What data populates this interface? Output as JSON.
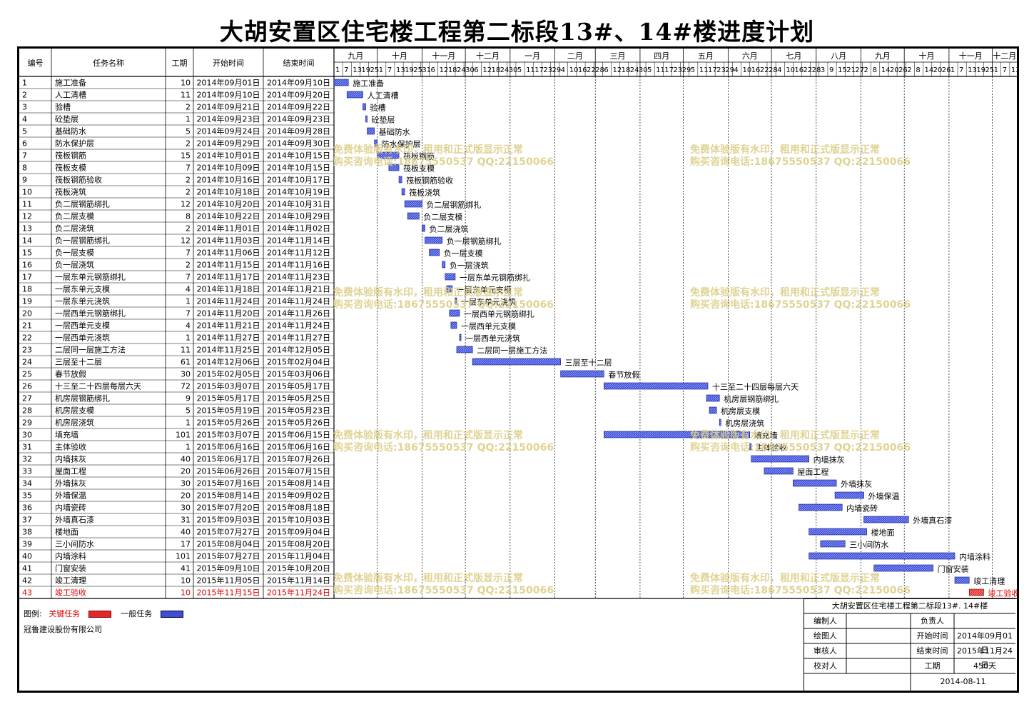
{
  "title": "大胡安置区住宅楼工程第二标段13#、14#楼进度计划",
  "columns": {
    "id": "编号",
    "name": "任务名称",
    "dur": "工期",
    "start": "开始时间",
    "end": "结束时间"
  },
  "months": [
    "九月",
    "十月",
    "十一月",
    "十二月",
    "一月",
    "二月",
    "三月",
    "四月",
    "五月",
    "六月",
    "七月",
    "八月",
    "九月",
    "十月",
    "十一月",
    "十二月"
  ],
  "day_ticks": [
    "1",
    "7",
    "13",
    "19",
    "25",
    "1",
    "7",
    "13",
    "19",
    "25",
    "31",
    "6",
    "12",
    "18",
    "24",
    "30",
    "6",
    "12",
    "18",
    "24",
    "30",
    "5",
    "11",
    "17",
    "23",
    "29",
    "4",
    "10",
    "16",
    "22",
    "28",
    "6",
    "12",
    "18",
    "24",
    "30",
    "5",
    "11",
    "17",
    "23",
    "29",
    "5",
    "11",
    "17",
    "23",
    "29",
    "4",
    "10",
    "16",
    "22",
    "28",
    "4",
    "10",
    "16",
    "22",
    "28",
    "3",
    "9",
    "15",
    "21",
    "27",
    "2",
    "8",
    "14",
    "20",
    "26",
    "2",
    "8",
    "14",
    "20",
    "26",
    "1",
    "7",
    "13",
    "19",
    "25",
    "1",
    "7",
    "13"
  ],
  "tasks": [
    {
      "id": "1",
      "name": "施工准备",
      "dur": "10",
      "start": "2014年09月01日",
      "end": "2014年09月10日",
      "critical": false
    },
    {
      "id": "2",
      "name": "人工清槽",
      "dur": "11",
      "start": "2014年09月10日",
      "end": "2014年09月20日",
      "critical": false
    },
    {
      "id": "3",
      "name": "验槽",
      "dur": "2",
      "start": "2014年09月21日",
      "end": "2014年09月22日",
      "critical": false
    },
    {
      "id": "4",
      "name": "砼垫层",
      "dur": "1",
      "start": "2014年09月23日",
      "end": "2014年09月23日",
      "critical": false
    },
    {
      "id": "5",
      "name": "基础防水",
      "dur": "5",
      "start": "2014年09月24日",
      "end": "2014年09月28日",
      "critical": false
    },
    {
      "id": "6",
      "name": "防水保护层",
      "dur": "2",
      "start": "2014年09月29日",
      "end": "2014年09月30日",
      "critical": false
    },
    {
      "id": "7",
      "name": "筏板钢筋",
      "dur": "15",
      "start": "2014年10月01日",
      "end": "2014年10月15日",
      "critical": false
    },
    {
      "id": "8",
      "name": "筏板支模",
      "dur": "7",
      "start": "2014年10月09日",
      "end": "2014年10月15日",
      "critical": false
    },
    {
      "id": "9",
      "name": "筏板钢筋验收",
      "dur": "2",
      "start": "2014年10月16日",
      "end": "2014年10月17日",
      "critical": false
    },
    {
      "id": "10",
      "name": "筏板浇筑",
      "dur": "2",
      "start": "2014年10月18日",
      "end": "2014年10月19日",
      "critical": false
    },
    {
      "id": "11",
      "name": "负二层钢筋绑扎",
      "dur": "12",
      "start": "2014年10月20日",
      "end": "2014年10月31日",
      "critical": false
    },
    {
      "id": "12",
      "name": "负二层支模",
      "dur": "8",
      "start": "2014年10月22日",
      "end": "2014年10月29日",
      "critical": false
    },
    {
      "id": "13",
      "name": "负二层浇筑",
      "dur": "2",
      "start": "2014年11月01日",
      "end": "2014年11月02日",
      "critical": false
    },
    {
      "id": "14",
      "name": "负一层钢筋绑扎",
      "dur": "12",
      "start": "2014年11月03日",
      "end": "2014年11月14日",
      "critical": false
    },
    {
      "id": "15",
      "name": "负一层支模",
      "dur": "7",
      "start": "2014年11月06日",
      "end": "2014年11月12日",
      "critical": false
    },
    {
      "id": "16",
      "name": "负一层浇筑",
      "dur": "2",
      "start": "2014年11月15日",
      "end": "2014年11月16日",
      "critical": false
    },
    {
      "id": "17",
      "name": "一层东单元钢筋绑扎",
      "dur": "7",
      "start": "2014年11月17日",
      "end": "2014年11月23日",
      "critical": false
    },
    {
      "id": "18",
      "name": "一层东单元支模",
      "dur": "4",
      "start": "2014年11月18日",
      "end": "2014年11月21日",
      "critical": false
    },
    {
      "id": "19",
      "name": "一层东单元浇筑",
      "dur": "1",
      "start": "2014年11月24日",
      "end": "2014年11月24日",
      "critical": false
    },
    {
      "id": "20",
      "name": "一层西单元钢筋绑扎",
      "dur": "7",
      "start": "2014年11月20日",
      "end": "2014年11月26日",
      "critical": false
    },
    {
      "id": "21",
      "name": "一层西单元支模",
      "dur": "4",
      "start": "2014年11月21日",
      "end": "2014年11月24日",
      "critical": false
    },
    {
      "id": "22",
      "name": "一层西单元浇筑",
      "dur": "1",
      "start": "2014年11月27日",
      "end": "2014年11月27日",
      "critical": false
    },
    {
      "id": "23",
      "name": "二层同一层施工方法",
      "dur": "11",
      "start": "2014年11月25日",
      "end": "2014年12月05日",
      "critical": false
    },
    {
      "id": "24",
      "name": "三层至十二层",
      "dur": "61",
      "start": "2014年12月06日",
      "end": "2015年02月04日",
      "critical": false
    },
    {
      "id": "25",
      "name": "春节放假",
      "dur": "30",
      "start": "2015年02月05日",
      "end": "2015年03月06日",
      "critical": false
    },
    {
      "id": "26",
      "name": "十三至二十四层每层六天",
      "dur": "72",
      "start": "2015年03月07日",
      "end": "2015年05月17日",
      "critical": false
    },
    {
      "id": "27",
      "name": "机房层钢筋绑扎",
      "dur": "9",
      "start": "2015年05月17日",
      "end": "2015年05月25日",
      "critical": false
    },
    {
      "id": "28",
      "name": "机房层支模",
      "dur": "5",
      "start": "2015年05月19日",
      "end": "2015年05月23日",
      "critical": false
    },
    {
      "id": "29",
      "name": "机房层浇筑",
      "dur": "1",
      "start": "2015年05月26日",
      "end": "2015年05月26日",
      "critical": false
    },
    {
      "id": "30",
      "name": "填充墙",
      "dur": "101",
      "start": "2015年03月07日",
      "end": "2015年06月15日",
      "critical": false
    },
    {
      "id": "31",
      "name": "主体验收",
      "dur": "1",
      "start": "2015年06月16日",
      "end": "2015年06月16日",
      "critical": false
    },
    {
      "id": "32",
      "name": "内墙抹灰",
      "dur": "40",
      "start": "2015年06月17日",
      "end": "2015年07月26日",
      "critical": false
    },
    {
      "id": "33",
      "name": "屋面工程",
      "dur": "20",
      "start": "2015年06月26日",
      "end": "2015年07月15日",
      "critical": false
    },
    {
      "id": "34",
      "name": "外墙抹灰",
      "dur": "30",
      "start": "2015年07月16日",
      "end": "2015年08月14日",
      "critical": false
    },
    {
      "id": "35",
      "name": "外墙保温",
      "dur": "20",
      "start": "2015年08月14日",
      "end": "2015年09月02日",
      "critical": false
    },
    {
      "id": "36",
      "name": "内墙瓷砖",
      "dur": "30",
      "start": "2015年07月20日",
      "end": "2015年08月18日",
      "critical": false
    },
    {
      "id": "37",
      "name": "外墙真石漆",
      "dur": "31",
      "start": "2015年09月03日",
      "end": "2015年10月03日",
      "critical": false
    },
    {
      "id": "38",
      "name": "楼地面",
      "dur": "40",
      "start": "2015年07月27日",
      "end": "2015年09月04日",
      "critical": false
    },
    {
      "id": "39",
      "name": "三小间防水",
      "dur": "17",
      "start": "2015年08月04日",
      "end": "2015年08月20日",
      "critical": false
    },
    {
      "id": "40",
      "name": "内墙涂料",
      "dur": "101",
      "start": "2015年07月27日",
      "end": "2015年11月04日",
      "critical": false
    },
    {
      "id": "41",
      "name": "门窗安装",
      "dur": "41",
      "start": "2015年09月10日",
      "end": "2015年10月20日",
      "critical": false
    },
    {
      "id": "42",
      "name": "竣工清理",
      "dur": "10",
      "start": "2015年11月05日",
      "end": "2015年11月14日",
      "critical": false
    },
    {
      "id": "43",
      "name": "竣工验收",
      "dur": "10",
      "start": "2015年11月15日",
      "end": "2015年11月24日",
      "critical": true
    }
  ],
  "watermark": {
    "line1": "免费体验版有水印，租用和正式版显示正常",
    "line2": "购买咨询电话:18675550537 QQ:22150066"
  },
  "legend": {
    "label": "图例:",
    "critical": "关键任务",
    "normal": "一般任务",
    "company": "冠鲁建设股份有限公司"
  },
  "title_block": {
    "project": "大胡安置区住宅楼工程第二标段13#. 14#楼",
    "editor": "编制人",
    "lead": "负责人",
    "drafter": "绘图人",
    "start_label": "开始时间",
    "start_value": "2014年09月01日",
    "reviewer": "审核人",
    "end_label": "结束时间",
    "end_value": "2015年11月24日",
    "checker": "校对人",
    "dur_label": "工期",
    "dur_value": "450天",
    "date": "2014-08-11"
  },
  "colors": {
    "normal": "#3d4fd8",
    "critical": "#e02828",
    "grid": "#000000",
    "critical_text": "#e00000"
  },
  "chart_data": {
    "type": "gantt",
    "x_start": "2014-09-01",
    "x_end": "2015-12-18",
    "series": [
      {
        "name": "一般任务"
      },
      {
        "name": "关键任务"
      }
    ]
  }
}
